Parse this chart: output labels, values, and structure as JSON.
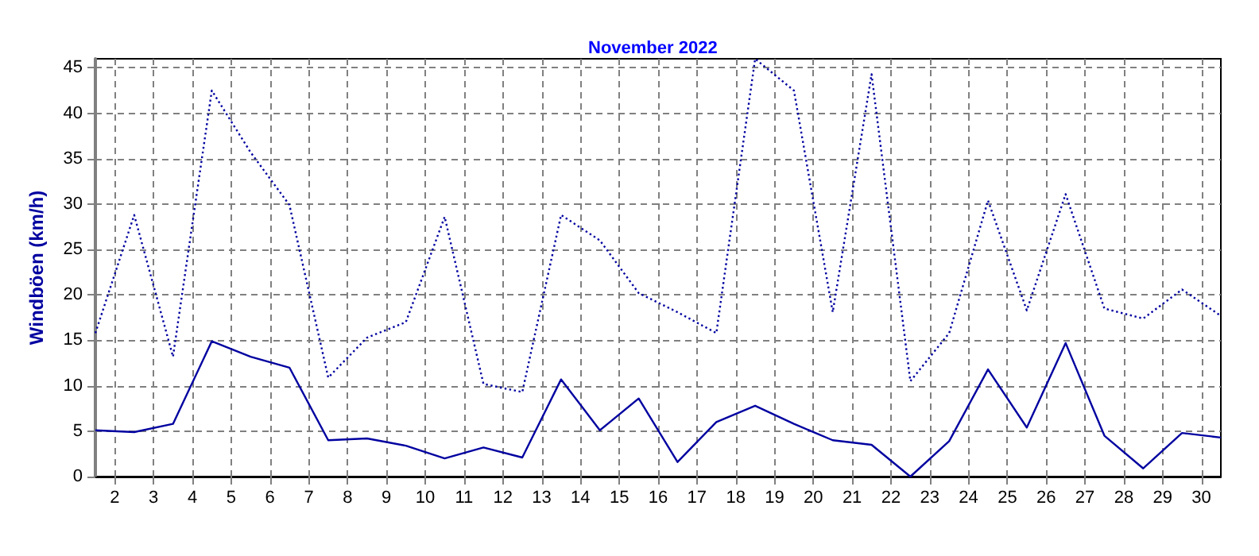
{
  "chart_data": {
    "type": "line",
    "title": "November 2022",
    "ylabel": "Windböen (km/h)",
    "x": [
      1.5,
      2.5,
      3.5,
      4.5,
      5.5,
      6.5,
      7.5,
      8.5,
      9.5,
      10.5,
      11.5,
      12.5,
      13.5,
      14.5,
      15.5,
      16.5,
      17.5,
      18.5,
      19.5,
      20.5,
      21.5,
      22.5,
      23.5,
      24.5,
      25.5,
      26.5,
      27.5,
      28.5,
      29.5,
      30.5
    ],
    "series": [
      {
        "color": "#0000a0",
        "line_style": "dotted",
        "values": [
          15.8,
          28.8,
          13.2,
          42.5,
          35.7,
          29.9,
          10.9,
          15.3,
          17,
          28.6,
          10.2,
          9.3,
          28.8,
          26,
          20.2,
          18.1,
          15.8,
          46,
          42.5,
          18.1,
          44.3,
          10.5,
          15.8,
          30.4,
          18.3,
          31.1,
          18.5,
          17.4,
          20.6,
          17.7
        ]
      },
      {
        "color": "#0000a0",
        "line_style": "solid",
        "values": [
          5.1,
          4.9,
          5.8,
          14.9,
          13.2,
          12,
          4,
          4.2,
          3.4,
          2,
          3.2,
          2.1,
          10.7,
          5.1,
          8.6,
          1.6,
          6,
          7.8,
          5.8,
          4,
          3.5,
          0,
          3.9,
          11.8,
          5.4,
          14.7,
          4.5,
          0.9,
          4.8,
          4.3
        ]
      }
    ],
    "xlim": [
      1.5,
      30.5
    ],
    "xticks": [
      2,
      3,
      4,
      5,
      6,
      7,
      8,
      9,
      10,
      11,
      12,
      13,
      14,
      15,
      16,
      17,
      18,
      19,
      20,
      21,
      22,
      23,
      24,
      25,
      26,
      27,
      28,
      29,
      30
    ],
    "ylim": [
      0,
      46
    ],
    "yticks": [
      0,
      5,
      10,
      15,
      20,
      25,
      30,
      35,
      40,
      45
    ],
    "grid": true,
    "marker": "none"
  }
}
